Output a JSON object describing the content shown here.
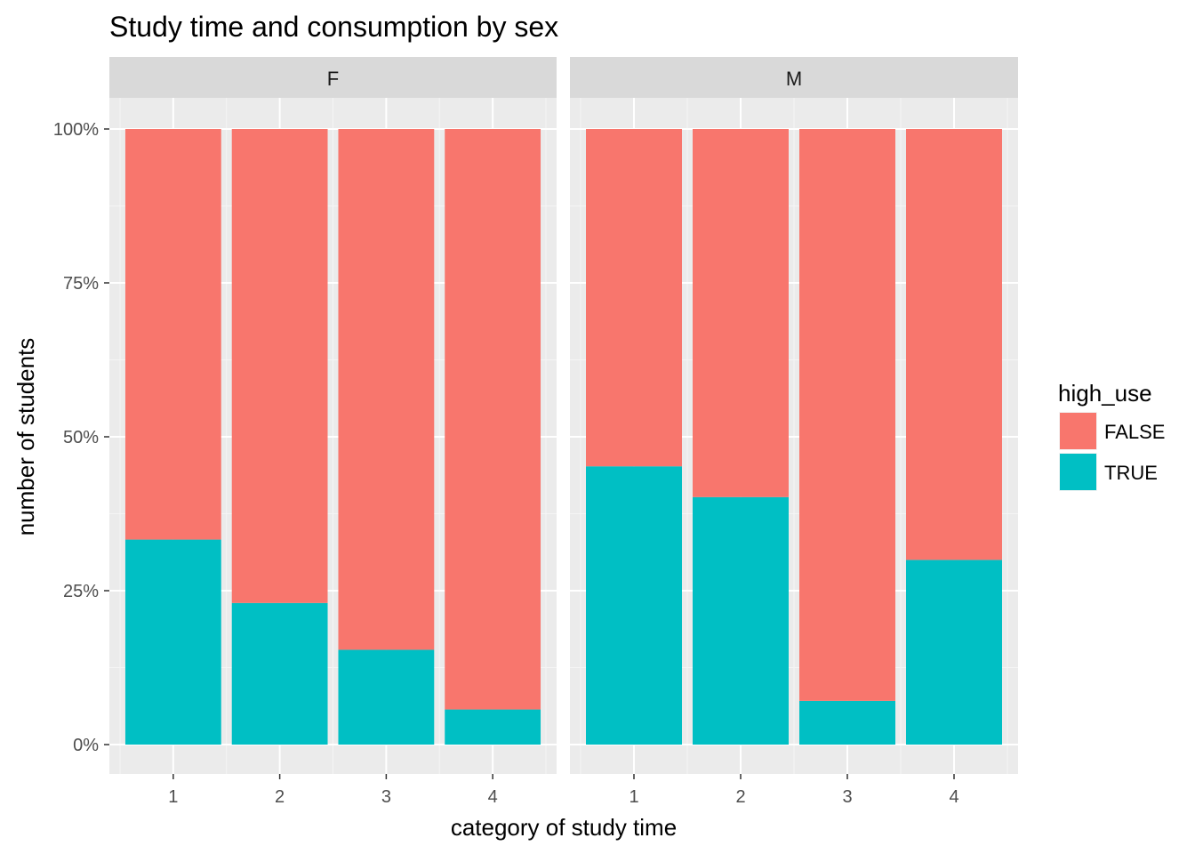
{
  "chart_data": {
    "type": "bar",
    "stacked": "percent",
    "title": "Study time and consumption by sex",
    "xlabel": "category of study time",
    "ylabel": "number of students",
    "ylim": [
      0,
      1
    ],
    "yticks": [
      {
        "value": 0,
        "label": "0%"
      },
      {
        "value": 0.25,
        "label": "25%"
      },
      {
        "value": 0.5,
        "label": "50%"
      },
      {
        "value": 0.75,
        "label": "75%"
      },
      {
        "value": 1,
        "label": "100%"
      }
    ],
    "categories": [
      "1",
      "2",
      "3",
      "4"
    ],
    "legend": {
      "title": "high_use",
      "position": "right",
      "entries": [
        {
          "label": "FALSE",
          "color": "#F8766D"
        },
        {
          "label": "TRUE",
          "color": "#00BFC4"
        }
      ]
    },
    "facets": [
      {
        "label": "F",
        "series": [
          {
            "name": "TRUE",
            "values": [
              0.333,
              0.23,
              0.154,
              0.057
            ]
          },
          {
            "name": "FALSE",
            "values": [
              0.667,
              0.77,
              0.846,
              0.943
            ]
          }
        ]
      },
      {
        "label": "M",
        "series": [
          {
            "name": "TRUE",
            "values": [
              0.452,
              0.402,
              0.071,
              0.3
            ]
          },
          {
            "name": "FALSE",
            "values": [
              0.548,
              0.598,
              0.929,
              0.7
            ]
          }
        ]
      }
    ],
    "grid": true
  }
}
